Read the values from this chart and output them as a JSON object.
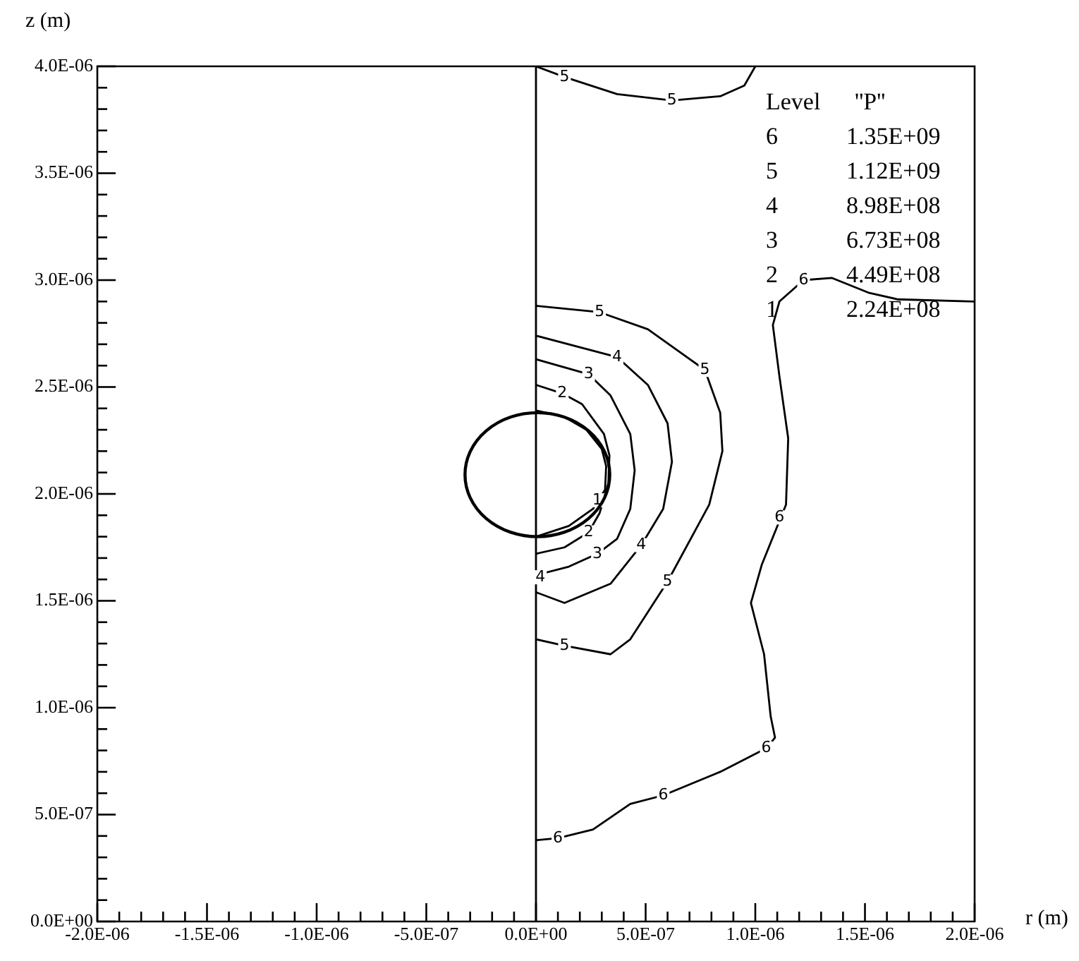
{
  "chart_data": {
    "type": "line",
    "xlabel": "r (m)",
    "ylabel": "z (m)",
    "marker": "none",
    "line_style": "solid",
    "xlim": [
      -2e-06,
      2e-06
    ],
    "ylim": [
      0,
      4e-06
    ],
    "xticks": [
      {
        "value": -2e-06,
        "label": "-2.0E-06"
      },
      {
        "value": -1.9e-06,
        "label": null
      },
      {
        "value": -1.8e-06,
        "label": null
      },
      {
        "value": -1.7e-06,
        "label": null
      },
      {
        "value": -1.6e-06,
        "label": null
      },
      {
        "value": -1.5e-06,
        "label": "-1.5E-06"
      },
      {
        "value": -1.4e-06,
        "label": null
      },
      {
        "value": -1.3e-06,
        "label": null
      },
      {
        "value": -1.2e-06,
        "label": null
      },
      {
        "value": -1.1e-06,
        "label": null
      },
      {
        "value": -1e-06,
        "label": "-1.0E-06"
      },
      {
        "value": -9e-07,
        "label": null
      },
      {
        "value": -8e-07,
        "label": null
      },
      {
        "value": -7e-07,
        "label": null
      },
      {
        "value": -6e-07,
        "label": null
      },
      {
        "value": -5e-07,
        "label": "-5.0E-07"
      },
      {
        "value": -4e-07,
        "label": null
      },
      {
        "value": -3e-07,
        "label": null
      },
      {
        "value": -2e-07,
        "label": null
      },
      {
        "value": -1e-07,
        "label": null
      },
      {
        "value": 0,
        "label": "0.0E+00"
      },
      {
        "value": 1e-07,
        "label": null
      },
      {
        "value": 2e-07,
        "label": null
      },
      {
        "value": 3e-07,
        "label": null
      },
      {
        "value": 4e-07,
        "label": null
      },
      {
        "value": 5e-07,
        "label": "5.0E-07"
      },
      {
        "value": 6e-07,
        "label": null
      },
      {
        "value": 7e-07,
        "label": null
      },
      {
        "value": 8e-07,
        "label": null
      },
      {
        "value": 9e-07,
        "label": null
      },
      {
        "value": 1e-06,
        "label": "1.0E-06"
      },
      {
        "value": 1.1e-06,
        "label": null
      },
      {
        "value": 1.2e-06,
        "label": null
      },
      {
        "value": 1.3e-06,
        "label": null
      },
      {
        "value": 1.4e-06,
        "label": null
      },
      {
        "value": 1.5e-06,
        "label": "1.5E-06"
      },
      {
        "value": 1.6e-06,
        "label": null
      },
      {
        "value": 1.7e-06,
        "label": null
      },
      {
        "value": 1.8e-06,
        "label": null
      },
      {
        "value": 1.9e-06,
        "label": null
      },
      {
        "value": 2e-06,
        "label": "2.0E-06"
      }
    ],
    "yticks": [
      {
        "value": 0,
        "label": "0.0E+00"
      },
      {
        "value": 1e-07,
        "label": null
      },
      {
        "value": 2e-07,
        "label": null
      },
      {
        "value": 3e-07,
        "label": null
      },
      {
        "value": 4e-07,
        "label": null
      },
      {
        "value": 5e-07,
        "label": "5.0E-07"
      },
      {
        "value": 6e-07,
        "label": null
      },
      {
        "value": 7e-07,
        "label": null
      },
      {
        "value": 8e-07,
        "label": null
      },
      {
        "value": 9e-07,
        "label": null
      },
      {
        "value": 1e-06,
        "label": "1.0E-06"
      },
      {
        "value": 1.1e-06,
        "label": null
      },
      {
        "value": 1.2e-06,
        "label": null
      },
      {
        "value": 1.3e-06,
        "label": null
      },
      {
        "value": 1.4e-06,
        "label": null
      },
      {
        "value": 1.5e-06,
        "label": "1.5E-06"
      },
      {
        "value": 1.6e-06,
        "label": null
      },
      {
        "value": 1.7e-06,
        "label": null
      },
      {
        "value": 1.8e-06,
        "label": null
      },
      {
        "value": 1.9e-06,
        "label": null
      },
      {
        "value": 2e-06,
        "label": "2.0E-06"
      },
      {
        "value": 2.1e-06,
        "label": null
      },
      {
        "value": 2.2e-06,
        "label": null
      },
      {
        "value": 2.3e-06,
        "label": null
      },
      {
        "value": 2.4e-06,
        "label": null
      },
      {
        "value": 2.5e-06,
        "label": "2.5E-06"
      },
      {
        "value": 2.6e-06,
        "label": null
      },
      {
        "value": 2.7e-06,
        "label": null
      },
      {
        "value": 2.8e-06,
        "label": null
      },
      {
        "value": 2.9e-06,
        "label": null
      },
      {
        "value": 3e-06,
        "label": "3.0E-06"
      },
      {
        "value": 3.1e-06,
        "label": null
      },
      {
        "value": 3.2e-06,
        "label": null
      },
      {
        "value": 3.3e-06,
        "label": null
      },
      {
        "value": 3.4e-06,
        "label": null
      },
      {
        "value": 3.5e-06,
        "label": "3.5E-06"
      },
      {
        "value": 3.6e-06,
        "label": null
      },
      {
        "value": 3.7e-06,
        "label": null
      },
      {
        "value": 3.8e-06,
        "label": null
      },
      {
        "value": 3.9e-06,
        "label": null
      },
      {
        "value": 4e-06,
        "label": "4.0E-06"
      }
    ],
    "series": [
      {
        "type": "line",
        "color": "#000000",
        "x": [
          0,
          1.3e-07,
          2.3e-07,
          3e-07,
          3.2e-07,
          3.15e-07,
          2.6e-07,
          1.5e-07,
          0
        ],
        "values": [
          2.39e-06,
          2.36e-06,
          2.3e-06,
          2.21e-06,
          2.13e-06,
          2.02e-06,
          1.93e-06,
          1.85e-06,
          1.8e-06
        ]
      },
      {
        "type": "line",
        "color": "#000000",
        "x": [
          0,
          1.2e-07,
          2.1e-07,
          3.1e-07,
          3.35e-07,
          3.3e-07,
          2.9e-07,
          2.4e-07,
          1.3e-07,
          0
        ],
        "values": [
          2.51e-06,
          2.47e-06,
          2.42e-06,
          2.28e-06,
          2.18e-06,
          2.05e-06,
          1.91e-06,
          1.82e-06,
          1.75e-06,
          1.72e-06
        ]
      },
      {
        "type": "line",
        "color": "#000000",
        "x": [
          0,
          2.4e-07,
          3.4e-07,
          4.3e-07,
          4.5e-07,
          4.3e-07,
          3.7e-07,
          2.8e-07,
          1.5e-07,
          0
        ],
        "values": [
          2.63e-06,
          2.56e-06,
          2.46e-06,
          2.28e-06,
          2.11e-06,
          1.93e-06,
          1.79e-06,
          1.72e-06,
          1.66e-06,
          1.62e-06
        ]
      },
      {
        "type": "line",
        "color": "#000000",
        "x": [
          0,
          3.7e-07,
          5.1e-07,
          6e-07,
          6.2e-07,
          5.8e-07,
          4.8e-07,
          3.4e-07,
          1.3e-07,
          0
        ],
        "values": [
          2.74e-06,
          2.64e-06,
          2.51e-06,
          2.33e-06,
          2.15e-06,
          1.93e-06,
          1.76e-06,
          1.58e-06,
          1.49e-06,
          1.54e-06
        ]
      },
      {
        "type": "line",
        "color": "#000000",
        "x": [
          0,
          2.9e-07,
          5.1e-07,
          7.7e-07,
          8.4e-07,
          8.5e-07,
          7.9e-07,
          6e-07,
          4.3e-07,
          3.4e-07,
          1.3e-07,
          0
        ],
        "values": [
          2.88e-06,
          2.85e-06,
          2.77e-06,
          2.58e-06,
          2.38e-06,
          2.2e-06,
          1.95e-06,
          1.59e-06,
          1.32e-06,
          1.25e-06,
          1.29e-06,
          1.32e-06
        ]
      },
      {
        "type": "line",
        "color": "#000000",
        "x": [
          0,
          1.3e-07,
          3.7e-07,
          6.2e-07,
          8.4e-07,
          9.5e-07,
          1e-06
        ],
        "values": [
          4e-06,
          3.95e-06,
          3.87e-06,
          3.84e-06,
          3.86e-06,
          3.91e-06,
          4e-06
        ]
      },
      {
        "type": "line",
        "color": "#000000",
        "x": [
          0,
          1e-07,
          2.6e-07,
          4.3e-07,
          5.8e-07,
          8.4e-07,
          1.05e-06,
          1.09e-06,
          1.07e-06,
          1.04e-06,
          9.8e-07,
          1.03e-06,
          1.14e-06,
          1.15e-06,
          1.11e-06,
          1.08e-06,
          1.11e-06,
          1.22e-06,
          1.35e-06,
          1.52e-06,
          1.65e-06,
          2e-06
        ],
        "values": [
          3.8e-07,
          3.9e-07,
          4.3e-07,
          5.5e-07,
          5.9e-07,
          7e-07,
          8.1e-07,
          8.6e-07,
          9.6e-07,
          1.25e-06,
          1.49e-06,
          1.67e-06,
          1.95e-06,
          2.26e-06,
          2.55e-06,
          2.79e-06,
          2.9e-06,
          3e-06,
          3.01e-06,
          2.94e-06,
          2.91e-06,
          2.9e-06
        ]
      }
    ],
    "ref_lines": [
      {
        "axis": "x",
        "value": 0,
        "color": "#000000",
        "line_style": "solid"
      }
    ],
    "annotations": [
      "Level",
      "''P''",
      "6",
      "1.35E+09",
      "5",
      "1.12E+09",
      "4",
      "8.98E+08",
      "3",
      "6.73E+08",
      "2",
      "4.49E+08",
      "1",
      "2.24E+08",
      {
        "text": "5",
        "x": 1.3e-07,
        "y": 3.95e-06
      },
      {
        "text": "5",
        "x": 6.2e-07,
        "y": 3.84e-06
      },
      {
        "text": "5",
        "x": 2.9e-07,
        "y": 2.85e-06
      },
      {
        "text": "5",
        "x": 7.7e-07,
        "y": 2.58e-06
      },
      {
        "text": "5",
        "x": 6e-07,
        "y": 1.59e-06
      },
      {
        "text": "5",
        "x": 1.3e-07,
        "y": 1.29e-06
      },
      {
        "text": "4",
        "x": 3.7e-07,
        "y": 2.64e-06
      },
      {
        "text": "4",
        "x": 4.8e-07,
        "y": 1.76e-06
      },
      {
        "text": "4",
        "x": 2e-08,
        "y": 1.61e-06
      },
      {
        "text": "3",
        "x": 2.4e-07,
        "y": 2.56e-06
      },
      {
        "text": "3",
        "x": 2.8e-07,
        "y": 1.72e-06
      },
      {
        "text": "2",
        "x": 1.2e-07,
        "y": 2.47e-06
      },
      {
        "text": "2",
        "x": 2.4e-07,
        "y": 1.82e-06
      },
      {
        "text": "1",
        "x": 2.8e-07,
        "y": 1.97e-06
      },
      {
        "text": "6",
        "x": 1e-07,
        "y": 3.9e-07
      },
      {
        "text": "6",
        "x": 5.8e-07,
        "y": 5.9e-07
      },
      {
        "text": "6",
        "x": 1.05e-06,
        "y": 8.1e-07
      },
      {
        "text": "6",
        "x": 1.11e-06,
        "y": 1.89e-06
      },
      {
        "text": "6",
        "x": 1.22e-06,
        "y": 3e-06
      }
    ]
  }
}
